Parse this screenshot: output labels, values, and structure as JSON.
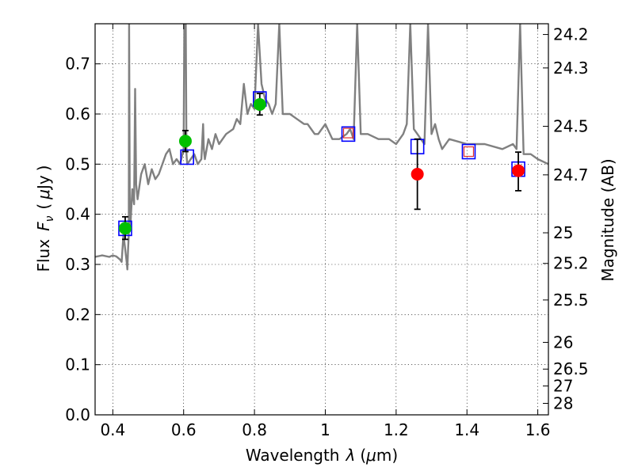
{
  "chart_data": {
    "type": "scatter",
    "title": "",
    "xlabel": "Wavelength  λ (μm)",
    "ylabel": "Flux  F_ν ( μJy )",
    "ylabel_parts": {
      "flux": "Flux",
      "f": "F",
      "nu": "ν",
      "lparen": "(",
      "mu": "μ",
      "jy": "Jy",
      "rparen": ")"
    },
    "xlabel_parts": {
      "text": "Wavelength",
      "lambda": "λ",
      "lparen": "(",
      "mu": "μ",
      "m": "m)"
    },
    "y2label": "Magnitude (AB)",
    "xlim": [
      0.35,
      1.63
    ],
    "ylim": [
      0.0,
      0.78
    ],
    "grid": true,
    "x_ticks": [
      0.4,
      0.6,
      0.8,
      1.0,
      1.2,
      1.4,
      1.6
    ],
    "x_tick_labels": [
      "0.4",
      "0.6",
      "0.8",
      "1",
      "1.2",
      "1.4",
      "1.6"
    ],
    "y_ticks": [
      0.0,
      0.1,
      0.2,
      0.3,
      0.4,
      0.5,
      0.6,
      0.7
    ],
    "y_tick_labels": [
      "0.0",
      "0.1",
      "0.2",
      "0.3",
      "0.4",
      "0.5",
      "0.6",
      "0.7"
    ],
    "y2_ticks": [
      {
        "label": "24.2",
        "value": 24.2
      },
      {
        "label": "24.3",
        "value": 24.3
      },
      {
        "label": "24.5",
        "value": 24.5
      },
      {
        "label": "24.7",
        "value": 24.7
      },
      {
        "label": "25",
        "value": 25.0
      },
      {
        "label": "25.2",
        "value": 25.2
      },
      {
        "label": "25.5",
        "value": 25.5
      },
      {
        "label": "26",
        "value": 26.0
      },
      {
        "label": "26.5",
        "value": 26.5
      },
      {
        "label": "27",
        "value": 27.0
      },
      {
        "label": "28",
        "value": 28.0
      }
    ],
    "series": [
      {
        "kind": "model_spectrum",
        "color": "#808080",
        "x": [
          0.35,
          0.37,
          0.39,
          0.4,
          0.41,
          0.42,
          0.425,
          0.43,
          0.435,
          0.44,
          0.441,
          0.443,
          0.445,
          0.446,
          0.448,
          0.45,
          0.455,
          0.46,
          0.463,
          0.466,
          0.47,
          0.48,
          0.49,
          0.5,
          0.51,
          0.52,
          0.53,
          0.54,
          0.55,
          0.56,
          0.57,
          0.58,
          0.59,
          0.6,
          0.602,
          0.604,
          0.606,
          0.608,
          0.61,
          0.62,
          0.63,
          0.64,
          0.65,
          0.655,
          0.657,
          0.66,
          0.67,
          0.68,
          0.69,
          0.7,
          0.72,
          0.74,
          0.75,
          0.76,
          0.77,
          0.78,
          0.79,
          0.8,
          0.81,
          0.82,
          0.83,
          0.84,
          0.85,
          0.86,
          0.87,
          0.88,
          0.9,
          0.92,
          0.94,
          0.95,
          0.96,
          0.97,
          0.98,
          0.99,
          1.0,
          1.02,
          1.04,
          1.06,
          1.07,
          1.08,
          1.09,
          1.1,
          1.12,
          1.15,
          1.18,
          1.2,
          1.21,
          1.22,
          1.23,
          1.24,
          1.25,
          1.26,
          1.27,
          1.28,
          1.29,
          1.3,
          1.31,
          1.32,
          1.33,
          1.35,
          1.4,
          1.45,
          1.5,
          1.53,
          1.54,
          1.55,
          1.56,
          1.58,
          1.6,
          1.63
        ],
        "y": [
          0.315,
          0.318,
          0.315,
          0.318,
          0.316,
          0.31,
          0.305,
          0.36,
          0.33,
          0.3,
          0.29,
          0.33,
          0.36,
          0.78,
          0.4,
          0.38,
          0.45,
          0.42,
          0.65,
          0.46,
          0.43,
          0.48,
          0.5,
          0.46,
          0.49,
          0.47,
          0.48,
          0.5,
          0.52,
          0.53,
          0.5,
          0.51,
          0.5,
          0.53,
          0.78,
          0.78,
          0.78,
          0.52,
          0.5,
          0.51,
          0.52,
          0.5,
          0.51,
          0.58,
          0.53,
          0.51,
          0.55,
          0.53,
          0.56,
          0.54,
          0.56,
          0.57,
          0.59,
          0.58,
          0.66,
          0.6,
          0.62,
          0.61,
          0.78,
          0.66,
          0.63,
          0.62,
          0.6,
          0.62,
          0.78,
          0.6,
          0.6,
          0.59,
          0.58,
          0.58,
          0.57,
          0.56,
          0.56,
          0.57,
          0.58,
          0.55,
          0.55,
          0.56,
          0.57,
          0.55,
          0.78,
          0.56,
          0.56,
          0.55,
          0.55,
          0.54,
          0.55,
          0.56,
          0.58,
          0.78,
          0.57,
          0.56,
          0.55,
          0.54,
          0.78,
          0.56,
          0.58,
          0.55,
          0.53,
          0.55,
          0.54,
          0.54,
          0.53,
          0.54,
          0.53,
          0.78,
          0.52,
          0.52,
          0.51,
          0.5
        ]
      },
      {
        "kind": "model_photometry",
        "marker": "open-square",
        "color": "#0000ff",
        "points": [
          [
            0.435,
            0.372
          ],
          [
            0.61,
            0.514
          ],
          [
            0.815,
            0.63
          ],
          [
            1.065,
            0.56
          ],
          [
            1.26,
            0.535
          ],
          [
            1.405,
            0.525
          ],
          [
            1.545,
            0.49
          ]
        ]
      },
      {
        "kind": "model_photometry_inner",
        "marker": "open-square-small",
        "color": "#e03030",
        "points": [
          [
            1.065,
            0.562
          ],
          [
            1.405,
            0.525
          ]
        ]
      },
      {
        "kind": "observed",
        "marker": "filled-circle",
        "color": "#00c000",
        "points": [
          [
            0.435,
            0.372
          ],
          [
            0.605,
            0.546
          ],
          [
            0.815,
            0.619
          ]
        ],
        "error_low": [
          0.35,
          0.525,
          0.598
        ],
        "error_high": [
          0.395,
          0.567,
          0.641
        ]
      },
      {
        "kind": "observed",
        "marker": "filled-circle",
        "color": "#ff0000",
        "points": [
          [
            1.26,
            0.48
          ],
          [
            1.545,
            0.487
          ]
        ],
        "error_low": [
          0.41,
          0.447
        ],
        "error_high": [
          0.55,
          0.524
        ]
      }
    ]
  }
}
